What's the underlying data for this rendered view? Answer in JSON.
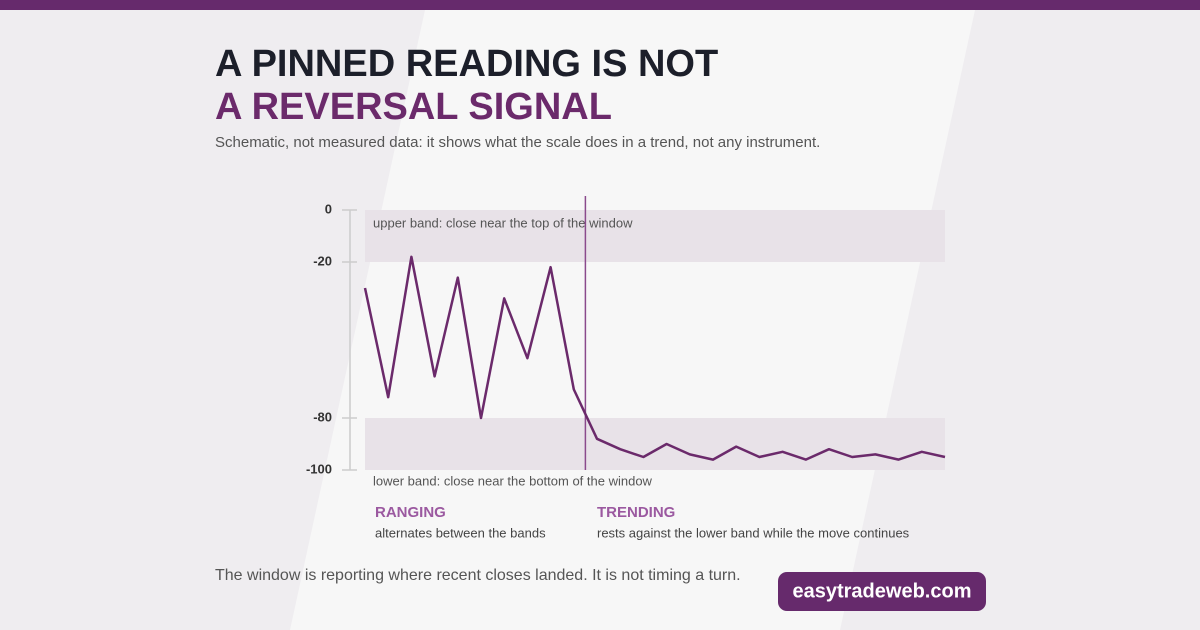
{
  "header": {
    "title": [
      "A PINNED READING IS NOT",
      "A REVERSAL SIGNAL"
    ],
    "subtitle": "Schematic, not measured data: it shows what the scale does in a trend, not any instrument."
  },
  "chart_data": {
    "type": "line",
    "x": [
      0,
      1,
      2,
      3,
      4,
      5,
      6,
      7,
      8,
      9,
      10,
      11,
      12,
      13,
      14,
      15,
      16,
      17,
      18,
      19,
      20,
      21,
      22,
      23,
      24,
      25
    ],
    "series": [
      {
        "color": "#6b2a6b",
        "values": [
          -30,
          -72,
          -18,
          -64,
          -26,
          -80,
          -34,
          -57,
          -22,
          -69,
          -88,
          -92,
          -95,
          -90,
          -94,
          -96,
          -91,
          -95,
          -93,
          -96,
          -92,
          -95,
          -94,
          -96,
          -93,
          -95
        ]
      }
    ],
    "xlim": [
      0,
      25
    ],
    "ylim": [
      -100,
      0
    ],
    "yticks": [
      0,
      -20,
      -80,
      -100
    ],
    "bands": [
      {
        "range": [
          -20,
          0
        ],
        "label": "upper band: close near the top of the window"
      },
      {
        "range": [
          -100,
          -80
        ],
        "label": "lower band: close near the bottom of the window"
      }
    ],
    "divider_x": 9.5,
    "regions": [
      {
        "name": "RANGING",
        "note": "alternates between the bands"
      },
      {
        "name": "TRENDING",
        "note": "rests against the lower band while the move continues"
      }
    ]
  },
  "footer": {
    "note": "The window is reporting where recent closes landed. It is not timing a turn.",
    "brand": "easytradeweb.com"
  }
}
